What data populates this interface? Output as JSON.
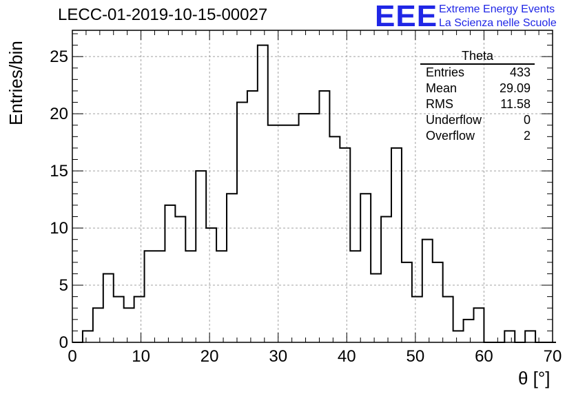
{
  "header": {
    "title": "LECC-01-2019-10-15-00027",
    "logo": "EEE",
    "logo_line1": "Extreme Energy Events",
    "logo_line2": "La Scienza nelle Scuole"
  },
  "stats": {
    "name": "Theta",
    "rows": [
      {
        "label": "Entries",
        "value": "433"
      },
      {
        "label": "Mean",
        "value": "29.09"
      },
      {
        "label": "RMS",
        "value": "11.58"
      },
      {
        "label": "Underflow",
        "value": "0"
      },
      {
        "label": "Overflow",
        "value": "2"
      }
    ]
  },
  "colors": {
    "accent": "#1f26e6",
    "line": "#000000",
    "grid": "#a0a0a0"
  },
  "chart_data": {
    "type": "histogram",
    "xlabel": "θ [°]",
    "ylabel": "Entries/bin",
    "xlim": [
      0,
      70
    ],
    "ylim": [
      0,
      27.3
    ],
    "xticks": [
      0,
      10,
      20,
      30,
      40,
      50,
      60,
      70
    ],
    "yticks": [
      0,
      5,
      10,
      15,
      20,
      25
    ],
    "grid": true,
    "bin_width": 1.5,
    "bin_start": 0,
    "values": [
      0,
      1,
      3,
      6,
      4,
      3,
      4,
      8,
      8,
      12,
      11,
      8,
      15,
      10,
      8,
      13,
      21,
      22,
      26,
      19,
      19,
      19,
      20,
      20,
      22,
      18,
      17,
      8,
      13,
      6,
      11,
      17,
      7,
      4,
      9,
      7,
      4,
      1,
      2,
      3,
      0,
      0,
      1,
      0,
      1,
      0,
      0
    ]
  }
}
